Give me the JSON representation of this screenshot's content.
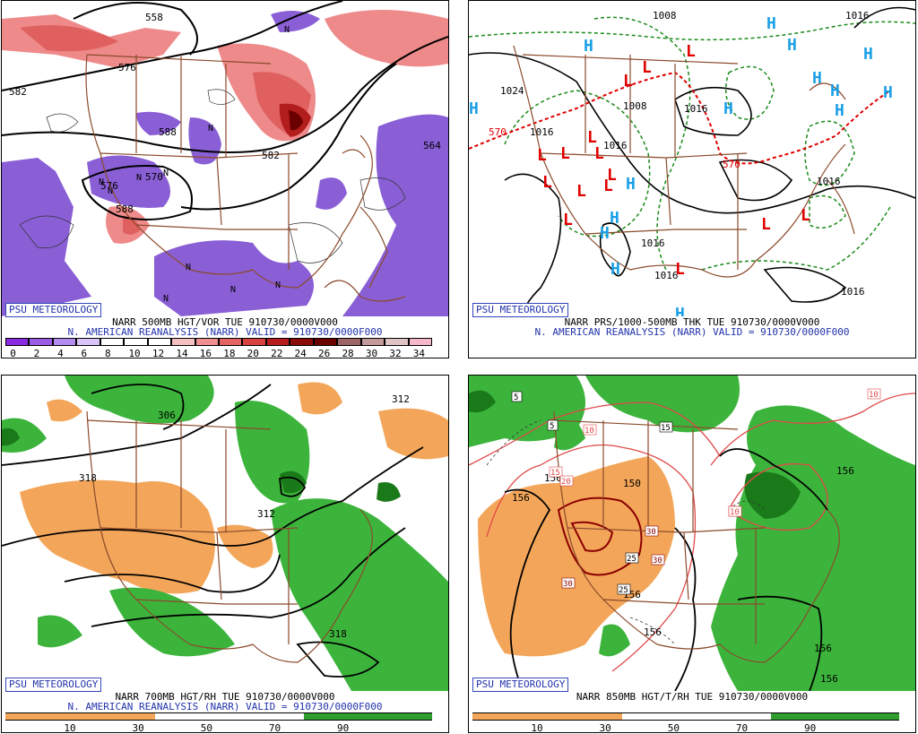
{
  "psu_label": "PSU METEOROLOGY",
  "panels": [
    {
      "caption": "NARR 500MB HGT/VOR TUE 910730/0000V000",
      "subcaption": "N. AMERICAN REANALYSIS (NARR) VALID = 910730/0000F000",
      "colorbar_labels": [
        "0",
        "2",
        "4",
        "6",
        "8",
        "10",
        "12",
        "14",
        "16",
        "18",
        "20",
        "22",
        "24",
        "26",
        "28",
        "30",
        "32",
        "34"
      ],
      "colorbar_colors": [
        "#8a2be2",
        "#9b5de5",
        "#b48cf0",
        "#d8c4f7",
        "#ffffff",
        "#ffffff",
        "#ffffff",
        "#f6c0c0",
        "#ef8f8f",
        "#e66363",
        "#d94040",
        "#b81d1d",
        "#8b0a0a",
        "#6b0000",
        "#9c6464",
        "#c49999",
        "#e0c4c4",
        "#f5b8c8"
      ],
      "contour_labels": [
        "582",
        "582",
        "588",
        "588",
        "576",
        "576",
        "570",
        "564",
        "558"
      ],
      "vorticity_labels": [
        "N",
        "N",
        "N",
        "N",
        "N",
        "N",
        "N",
        "N",
        "N",
        "N"
      ]
    },
    {
      "caption": "NARR PRS/1000-500MB THK TUE 910730/0000V000",
      "subcaption": "N. AMERICAN REANALYSIS (NARR) VALID = 910730/0000F000",
      "high_label": "H",
      "low_label": "L",
      "isobar_labels": [
        "1008",
        "1016",
        "1016",
        "1016",
        "1016",
        "1024",
        "1016",
        "1016",
        "1016",
        "1016",
        "1008"
      ],
      "thickness_labels": [
        "570",
        "570"
      ]
    },
    {
      "caption": "NARR 700MB HGT/RH TUE 910730/0000V000",
      "subcaption": "N. AMERICAN REANALYSIS (NARR) VALID = 910730/0000F000",
      "colorbar_labels": [
        "10",
        "30",
        "50",
        "70",
        "90"
      ],
      "contour_labels": [
        "306",
        "312",
        "318",
        "312",
        "318"
      ]
    },
    {
      "caption": "NARR 850MB HGT/T/RH TUE 910730/0000V000",
      "colorbar_labels": [
        "10",
        "30",
        "50",
        "70",
        "90"
      ],
      "contour_labels": [
        "150",
        "156",
        "156",
        "156",
        "156",
        "156",
        "156",
        "156"
      ],
      "temp_labels": [
        "5",
        "5",
        "10",
        "10",
        "10",
        "15",
        "15",
        "20",
        "25",
        "25",
        "30",
        "30",
        "30",
        "10"
      ]
    }
  ]
}
